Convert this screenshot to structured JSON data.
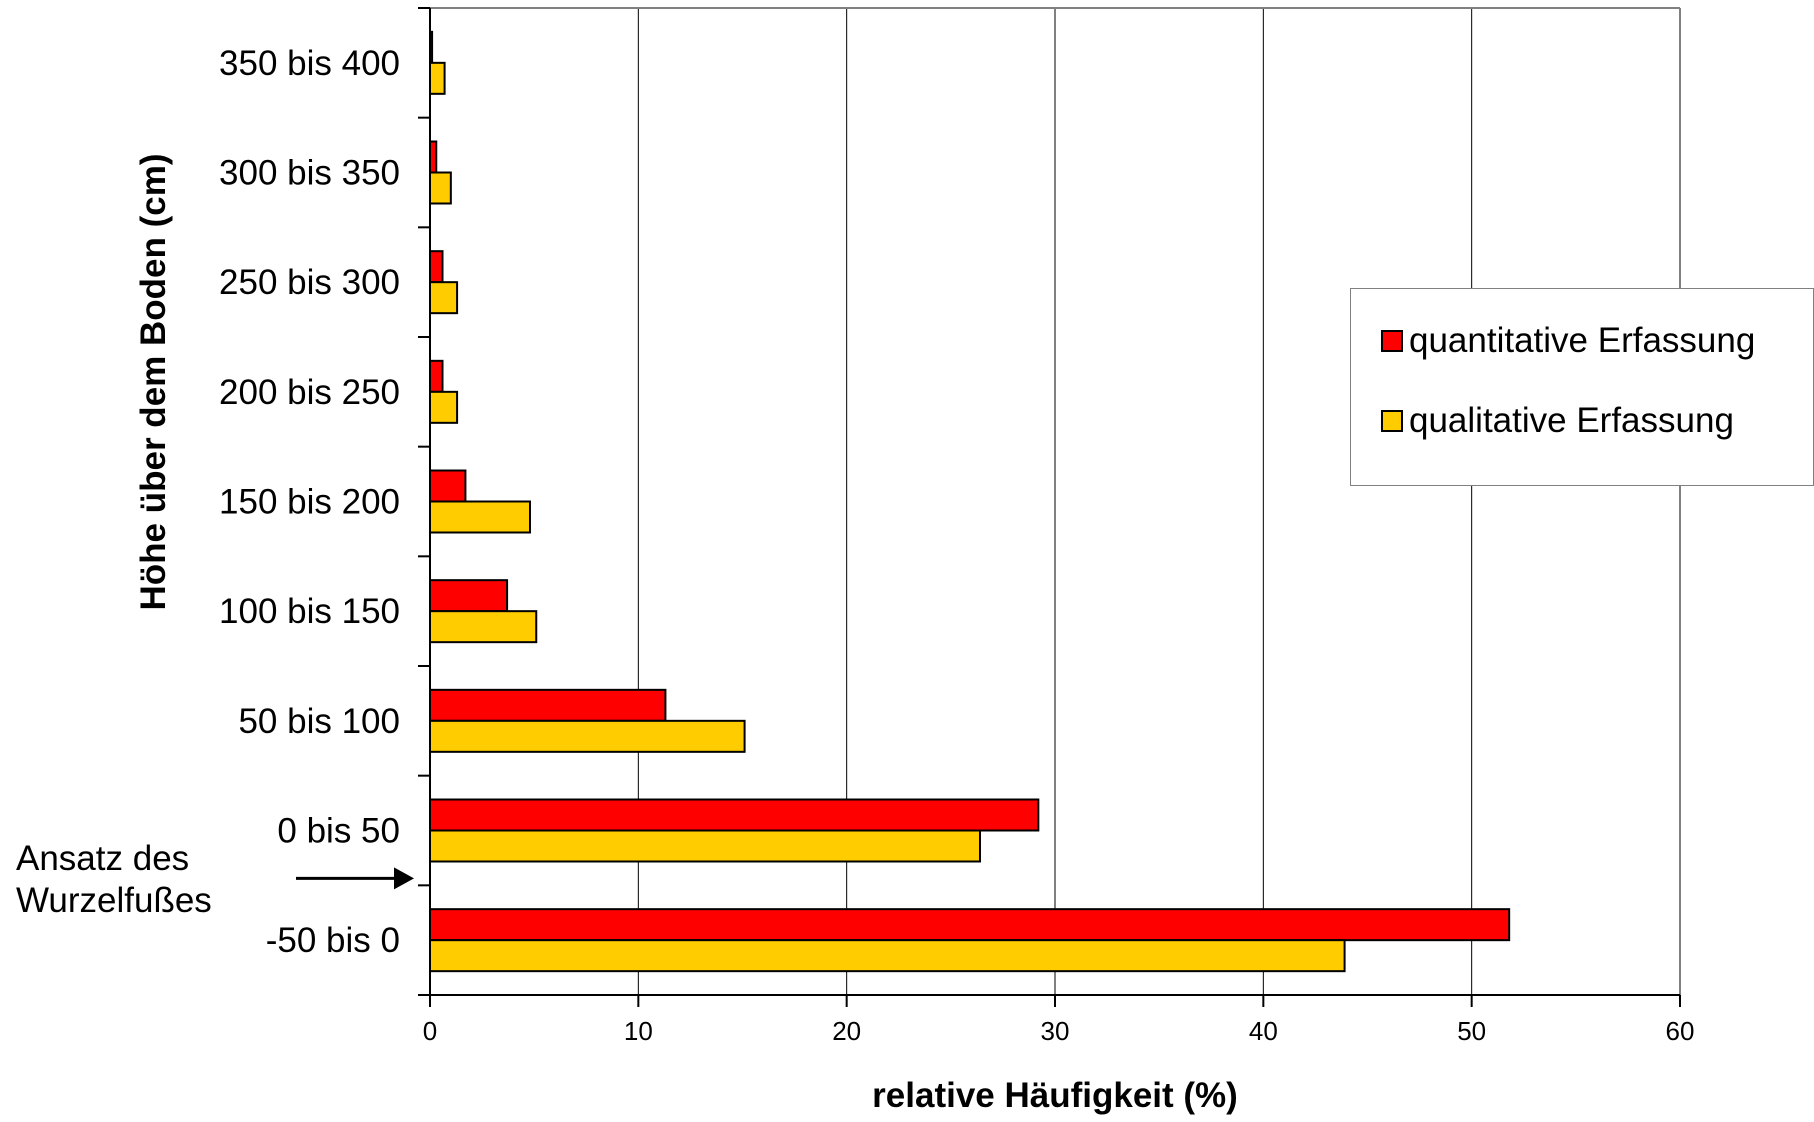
{
  "chart_data": {
    "type": "bar",
    "orientation": "horizontal",
    "categories": [
      "-50 bis 0",
      "0 bis 50",
      "50 bis 100",
      "100 bis 150",
      "150 bis 200",
      "200 bis 250",
      "250 bis 300",
      "300 bis 350",
      "350 bis 400"
    ],
    "series": [
      {
        "name": "quantitative Erfassung",
        "color": "#ff0000",
        "values": [
          51.8,
          29.2,
          11.3,
          3.7,
          1.7,
          0.6,
          0.6,
          0.3,
          0.1
        ]
      },
      {
        "name": "qualitative Erfassung",
        "color": "#ffcc00",
        "values": [
          43.9,
          26.4,
          15.1,
          5.1,
          4.8,
          1.3,
          1.3,
          1.0,
          0.7
        ]
      }
    ],
    "xlabel": "relative Häufigkeit (%)",
    "ylabel": "Höhe über dem Boden (cm)",
    "xlim": [
      0,
      60
    ],
    "xticks": [
      "0",
      "10",
      "20",
      "30",
      "40",
      "50",
      "60"
    ],
    "xtick_values": [
      0,
      10,
      20,
      30,
      40,
      50,
      60
    ],
    "grid": "vertical",
    "legend_position": "right",
    "annotation": {
      "lines": [
        "Ansatz des",
        "Wurzelfußes"
      ],
      "points_to_boundary_between": [
        "-50 bis 0",
        "0 bis 50"
      ]
    }
  }
}
